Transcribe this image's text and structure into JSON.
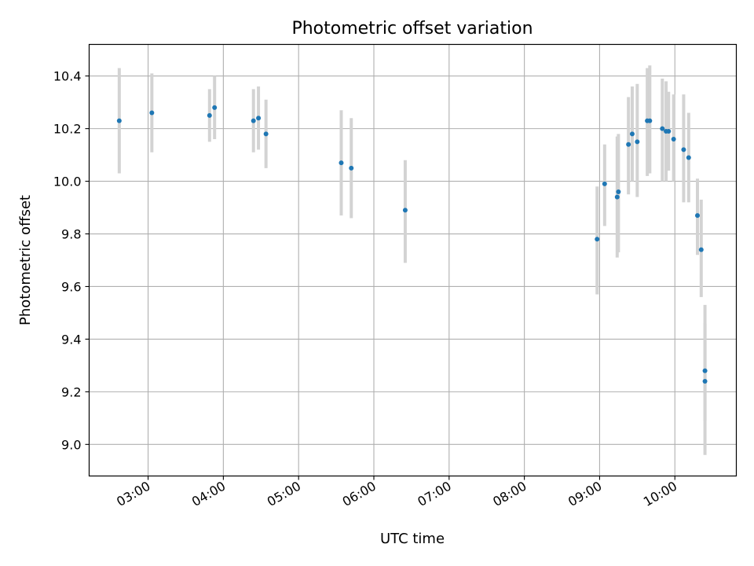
{
  "chart_data": {
    "type": "scatter",
    "title": "Photometric offset variation",
    "xlabel": "UTC time",
    "ylabel": "Photometric offset",
    "grid": true,
    "xlim": [
      "02:13",
      "10:49"
    ],
    "ylim": [
      8.88,
      10.52
    ],
    "x_ticks": [
      "03:00",
      "04:00",
      "05:00",
      "06:00",
      "07:00",
      "08:00",
      "09:00",
      "10:00"
    ],
    "y_ticks": [
      "9.0",
      "9.2",
      "9.4",
      "9.6",
      "9.8",
      "10.0",
      "10.2",
      "10.4"
    ],
    "point_color": "#1f77b4",
    "errorbar_color": "#d3d3d3",
    "points": [
      {
        "time": "02:37",
        "y": 10.23,
        "low": 10.03,
        "high": 10.43
      },
      {
        "time": "03:03",
        "y": 10.26,
        "low": 10.11,
        "high": 10.41
      },
      {
        "time": "03:49",
        "y": 10.25,
        "low": 10.15,
        "high": 10.35
      },
      {
        "time": "03:53",
        "y": 10.28,
        "low": 10.16,
        "high": 10.4
      },
      {
        "time": "04:24",
        "y": 10.23,
        "low": 10.11,
        "high": 10.35
      },
      {
        "time": "04:28",
        "y": 10.24,
        "low": 10.12,
        "high": 10.36
      },
      {
        "time": "04:34",
        "y": 10.18,
        "low": 10.05,
        "high": 10.31
      },
      {
        "time": "05:34",
        "y": 10.07,
        "low": 9.87,
        "high": 10.27
      },
      {
        "time": "05:42",
        "y": 10.05,
        "low": 9.86,
        "high": 10.24
      },
      {
        "time": "06:25",
        "y": 9.89,
        "low": 9.69,
        "high": 10.08
      },
      {
        "time": "08:58",
        "y": 9.78,
        "low": 9.57,
        "high": 9.98
      },
      {
        "time": "09:04",
        "y": 9.99,
        "low": 9.83,
        "high": 10.14
      },
      {
        "time": "09:14",
        "y": 9.94,
        "low": 9.71,
        "high": 10.17
      },
      {
        "time": "09:15",
        "y": 9.96,
        "low": 9.73,
        "high": 10.18
      },
      {
        "time": "09:23",
        "y": 10.14,
        "low": 9.95,
        "high": 10.32
      },
      {
        "time": "09:26",
        "y": 10.18,
        "low": 10.0,
        "high": 10.36
      },
      {
        "time": "09:30",
        "y": 10.15,
        "low": 9.94,
        "high": 10.37
      },
      {
        "time": "09:38",
        "y": 10.23,
        "low": 10.02,
        "high": 10.43
      },
      {
        "time": "09:40",
        "y": 10.23,
        "low": 10.03,
        "high": 10.44
      },
      {
        "time": "09:50",
        "y": 10.2,
        "low": 10.0,
        "high": 10.39
      },
      {
        "time": "09:53",
        "y": 10.19,
        "low": 10.0,
        "high": 10.38
      },
      {
        "time": "09:55",
        "y": 10.19,
        "low": 10.04,
        "high": 10.34
      },
      {
        "time": "09:59",
        "y": 10.16,
        "low": 10.0,
        "high": 10.33
      },
      {
        "time": "10:07",
        "y": 10.12,
        "low": 9.92,
        "high": 10.33
      },
      {
        "time": "10:11",
        "y": 10.09,
        "low": 9.92,
        "high": 10.26
      },
      {
        "time": "10:18",
        "y": 9.87,
        "low": 9.72,
        "high": 10.01
      },
      {
        "time": "10:21",
        "y": 9.74,
        "low": 9.56,
        "high": 9.93
      },
      {
        "time": "10:24",
        "y": 9.28,
        "low": 9.09,
        "high": 9.46
      },
      {
        "time": "10:24",
        "y": 9.24,
        "low": 8.96,
        "high": 9.53
      }
    ]
  }
}
